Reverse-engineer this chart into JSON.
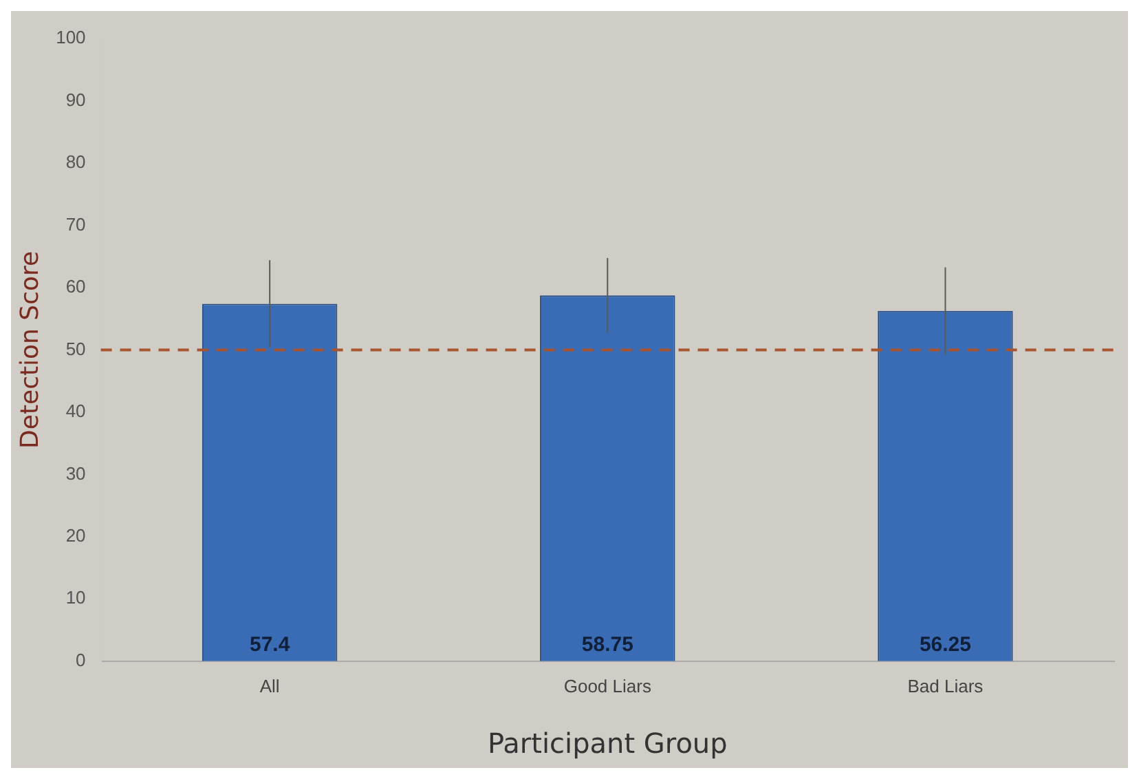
{
  "chart_data": {
    "type": "bar",
    "xlabel": "Participant Group",
    "ylabel": "Detection Score",
    "categories": [
      "All",
      "Good Liars",
      "Bad Liars"
    ],
    "values": [
      57.4,
      58.75,
      56.25
    ],
    "errors": [
      7,
      6,
      7
    ],
    "color": "#3a6cb5",
    "ylim": [
      0,
      100
    ],
    "yticks": [
      0,
      10,
      20,
      30,
      40,
      50,
      60,
      70,
      80,
      90,
      100
    ],
    "ref_lines": [
      {
        "axis": "y",
        "value": 50,
        "color": "#a8542e",
        "line_style": "dashed"
      }
    ],
    "data_labels": true,
    "grid": false,
    "legend": false
  }
}
